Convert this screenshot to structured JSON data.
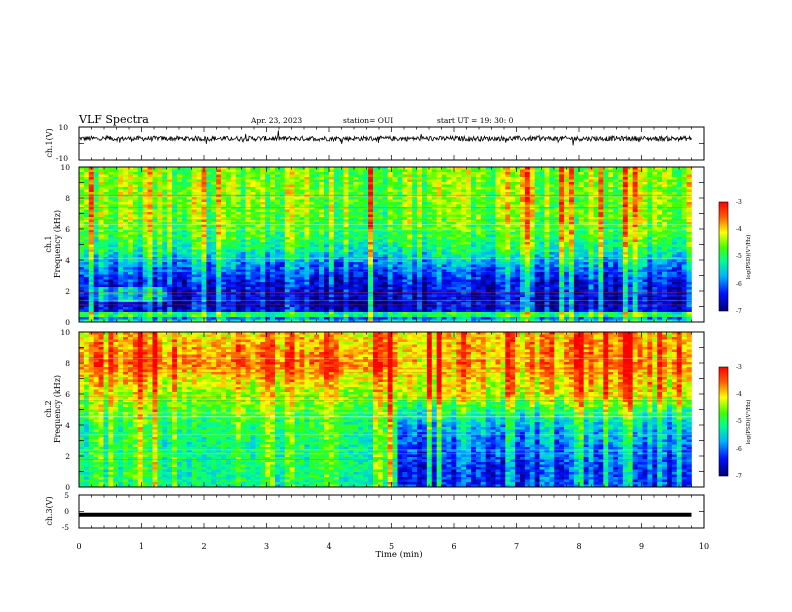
{
  "header": {
    "title": "VLF Spectra",
    "date": "Apr. 23, 2023",
    "station": "station= OUI",
    "start": "start  UT =   19: 30: 0"
  },
  "chart_data": [
    {
      "panel": "ch1-waveform",
      "type": "line",
      "ylabel": "ch.1(V)",
      "ylim": [
        -10,
        10
      ],
      "yticks": [
        "10",
        "-10"
      ],
      "xlim": [
        0,
        10
      ],
      "level": 3,
      "spread": 1.5
    },
    {
      "panel": "ch1-spectrogram",
      "type": "heatmap",
      "ylabel_top": "ch.1",
      "ylabel": "Frequency (kHz)",
      "ylim": [
        0,
        10
      ],
      "yticks": [
        "0",
        "2",
        "4",
        "6",
        "8",
        "10"
      ],
      "xlim": [
        0,
        10
      ],
      "data_end_min": 9.8,
      "colorbar": {
        "label": "log(PSD)(V²/Hz)",
        "range": [
          -7,
          -3
        ],
        "ticks": [
          "-3",
          "-4",
          "-5",
          "-6",
          "-7"
        ]
      },
      "profile": [
        {
          "f": 0.0,
          "v": -5.2
        },
        {
          "f": 0.5,
          "v": -6.5
        },
        {
          "f": 1.5,
          "v": -6.6
        },
        {
          "f": 2.5,
          "v": -6.4
        },
        {
          "f": 3.5,
          "v": -5.9
        },
        {
          "f": 4.5,
          "v": -5.2
        },
        {
          "f": 5.5,
          "v": -4.8
        },
        {
          "f": 6.5,
          "v": -4.6
        },
        {
          "f": 8.0,
          "v": -4.5
        },
        {
          "f": 10.0,
          "v": -4.5
        }
      ],
      "features": [
        {
          "t0": 0.2,
          "t1": 1.45,
          "f0": 1.3,
          "f1": 2.3,
          "v": -5.6
        },
        {
          "t0": 0.0,
          "t1": 9.8,
          "f0": 0.35,
          "f1": 0.7,
          "v": -5.0
        }
      ]
    },
    {
      "panel": "ch2-spectrogram",
      "type": "heatmap",
      "ylabel_top": "ch.2",
      "ylabel": "Frequency (kHz)",
      "ylim": [
        0,
        10
      ],
      "yticks": [
        "0",
        "2",
        "4",
        "6",
        "8",
        "10"
      ],
      "xlim": [
        0,
        10
      ],
      "data_end_min": 9.8,
      "colorbar": {
        "label": "log(PSD)(V²/Hz)",
        "range": [
          -7,
          -3
        ],
        "ticks": [
          "-3",
          "-4",
          "-5",
          "-6",
          "-7"
        ]
      },
      "profile": [
        {
          "f": 0.0,
          "v": -5.0
        },
        {
          "f": 1.0,
          "v": -4.9
        },
        {
          "f": 3.0,
          "v": -4.9
        },
        {
          "f": 4.0,
          "v": -4.8
        },
        {
          "f": 5.5,
          "v": -4.4
        },
        {
          "f": 7.0,
          "v": -3.9
        },
        {
          "f": 8.0,
          "v": -3.4
        },
        {
          "f": 9.0,
          "v": -3.7
        },
        {
          "f": 10.0,
          "v": -3.9
        }
      ],
      "transition_min": 5.1,
      "profile_after": [
        {
          "f": 0.0,
          "v": -6.2
        },
        {
          "f": 1.0,
          "v": -6.3
        },
        {
          "f": 2.5,
          "v": -6.0
        },
        {
          "f": 4.0,
          "v": -5.6
        },
        {
          "f": 5.0,
          "v": -5.0
        },
        {
          "f": 6.0,
          "v": -4.2
        },
        {
          "f": 8.0,
          "v": -3.8
        },
        {
          "f": 10.0,
          "v": -3.9
        }
      ]
    },
    {
      "panel": "ch3-waveform",
      "type": "line",
      "ylabel": "ch.3(V)",
      "ylim": [
        -5,
        5
      ],
      "yticks": [
        "5",
        "0",
        "-5"
      ],
      "xlim": [
        0,
        10
      ],
      "level": -1,
      "spread": 0
    }
  ],
  "x_axis": {
    "label": "Time (min)",
    "ticks": [
      "0",
      "1",
      "2",
      "3",
      "4",
      "5",
      "6",
      "7",
      "8",
      "9",
      "10"
    ]
  }
}
